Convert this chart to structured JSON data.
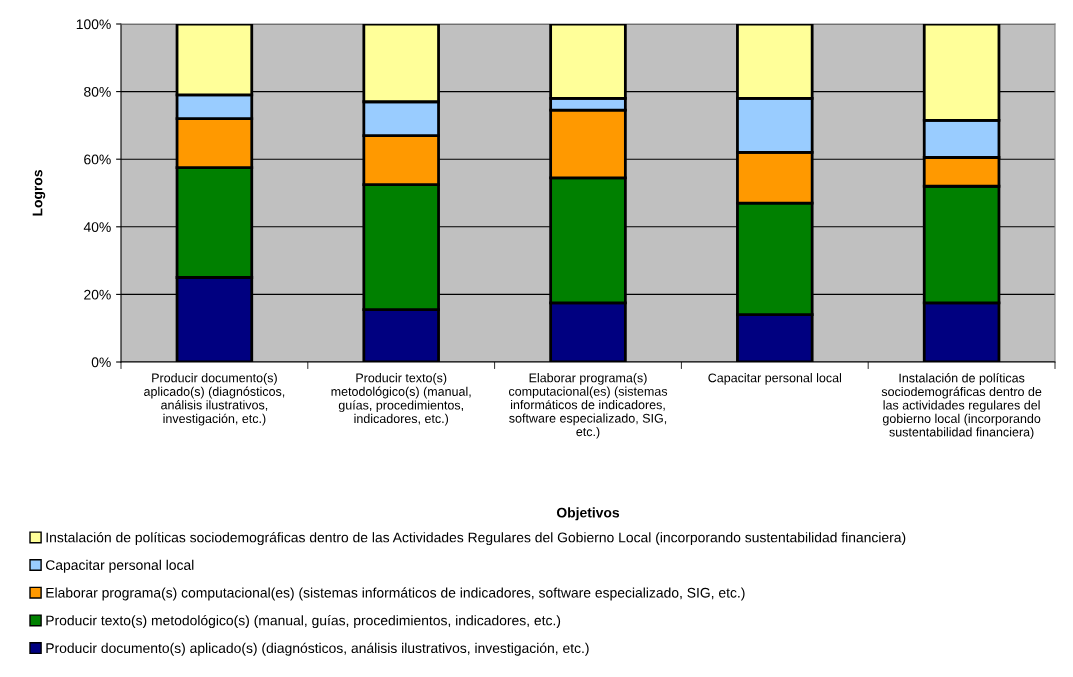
{
  "chart_data": {
    "type": "bar",
    "stacked": true,
    "xlabel": "Objetivos",
    "ylabel": "Logros",
    "categories": [
      "Producir documento(s) aplicado(s) (diagnósticos, análisis ilustrativos, investigación, etc.)",
      "Producir texto(s) metodológico(s) (manual, guías, procedimientos, indicadores, etc.)",
      "Elaborar programa(s) computacional(es) (sistemas informáticos de indicadores, software especializado, SIG, etc.)",
      "Capacitar personal local",
      "Instalación de políticas sociodemográficas dentro de las actividades regulares del gobierno local (incorporando sustentabilidad financiera)"
    ],
    "series": [
      {
        "name": "Producir documento(s) aplicado(s) (diagnósticos, análisis ilustrativos, investigación, etc.)",
        "color": "#000080",
        "values": [
          25,
          15.5,
          17.5,
          14,
          17.5
        ]
      },
      {
        "name": "Producir texto(s) metodológico(s) (manual, guías, procedimientos, indicadores, etc.)",
        "color": "#008000",
        "values": [
          32.5,
          37,
          37,
          33,
          34.5
        ]
      },
      {
        "name": "Elaborar programa(s) computacional(es) (sistemas informáticos de indicadores, software especializado, SIG, etc.)",
        "color": "#ff9900",
        "values": [
          14.5,
          14.5,
          20,
          15,
          8.5
        ]
      },
      {
        "name": "Capacitar personal local",
        "color": "#99ccff",
        "values": [
          7,
          10,
          3.5,
          16,
          11
        ]
      },
      {
        "name": "Instalación de políticas sociodemográficas dentro de las Actividades Regulares del Gobierno Local (incorporando sustentabilidad financiera)",
        "color": "#ffff99",
        "values": [
          21,
          23,
          22,
          22,
          28.5
        ]
      }
    ],
    "ylim": [
      0,
      100
    ],
    "yticks": [
      {
        "value": 0,
        "label": "0%"
      },
      {
        "value": 20,
        "label": "20%"
      },
      {
        "value": 40,
        "label": "40%"
      },
      {
        "value": 60,
        "label": "60%"
      },
      {
        "value": 80,
        "label": "80%"
      },
      {
        "value": 100,
        "label": "100%"
      }
    ],
    "grid": "y",
    "legend": "bottom"
  }
}
